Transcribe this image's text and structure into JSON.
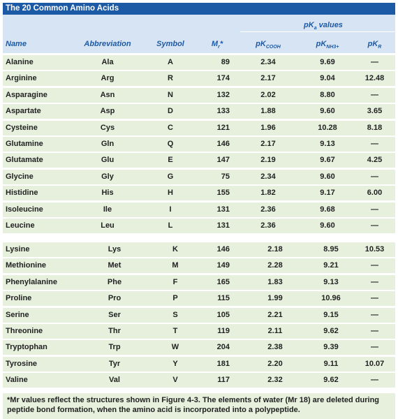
{
  "title": "The 20 Common Amino Acids",
  "header": {
    "pk_group": "pKa values",
    "columns": [
      "Name",
      "Abbreviation",
      "Symbol",
      "Mr*",
      "pKCOOH",
      "pKNH3+",
      "pKR"
    ]
  },
  "rows": [
    {
      "name": "Alanine",
      "abbr": "Ala",
      "symbol": "A",
      "mr": "89",
      "pk_cooh": "2.34",
      "pk_nh3": "9.69",
      "pk_r": "—"
    },
    {
      "name": "Arginine",
      "abbr": "Arg",
      "symbol": "R",
      "mr": "174",
      "pk_cooh": "2.17",
      "pk_nh3": "9.04",
      "pk_r": "12.48"
    },
    {
      "name": "Asparagine",
      "abbr": "Asn",
      "symbol": "N",
      "mr": "132",
      "pk_cooh": "2.02",
      "pk_nh3": "8.80",
      "pk_r": "—"
    },
    {
      "name": "Aspartate",
      "abbr": "Asp",
      "symbol": "D",
      "mr": "133",
      "pk_cooh": "1.88",
      "pk_nh3": "9.60",
      "pk_r": "3.65"
    },
    {
      "name": "Cysteine",
      "abbr": "Cys",
      "symbol": "C",
      "mr": "121",
      "pk_cooh": "1.96",
      "pk_nh3": "10.28",
      "pk_r": "8.18"
    },
    {
      "name": "Glutamine",
      "abbr": "Gln",
      "symbol": "Q",
      "mr": "146",
      "pk_cooh": "2.17",
      "pk_nh3": "9.13",
      "pk_r": "—"
    },
    {
      "name": "Glutamate",
      "abbr": "Glu",
      "symbol": "E",
      "mr": "147",
      "pk_cooh": "2.19",
      "pk_nh3": "9.67",
      "pk_r": "4.25"
    },
    {
      "name": "Glycine",
      "abbr": "Gly",
      "symbol": "G",
      "mr": "75",
      "pk_cooh": "2.34",
      "pk_nh3": "9.60",
      "pk_r": "—"
    },
    {
      "name": "Histidine",
      "abbr": "His",
      "symbol": "H",
      "mr": "155",
      "pk_cooh": "1.82",
      "pk_nh3": "9.17",
      "pk_r": "6.00"
    },
    {
      "name": "Isoleucine",
      "abbr": "Ile",
      "symbol": "I",
      "mr": "131",
      "pk_cooh": "2.36",
      "pk_nh3": "9.68",
      "pk_r": "—"
    },
    {
      "name": "Leucine",
      "abbr": "Leu",
      "symbol": "L",
      "mr": "131",
      "pk_cooh": "2.36",
      "pk_nh3": "9.60",
      "pk_r": "—"
    },
    {
      "name": "Lysine",
      "abbr": "Lys",
      "symbol": "K",
      "mr": "146",
      "pk_cooh": "2.18",
      "pk_nh3": "8.95",
      "pk_r": "10.53"
    },
    {
      "name": "Methionine",
      "abbr": "Met",
      "symbol": "M",
      "mr": "149",
      "pk_cooh": "2.28",
      "pk_nh3": "9.21",
      "pk_r": "—"
    },
    {
      "name": "Phenylalanine",
      "abbr": "Phe",
      "symbol": "F",
      "mr": "165",
      "pk_cooh": "1.83",
      "pk_nh3": "9.13",
      "pk_r": "—"
    },
    {
      "name": "Proline",
      "abbr": "Pro",
      "symbol": "P",
      "mr": "115",
      "pk_cooh": "1.99",
      "pk_nh3": "10.96",
      "pk_r": "—"
    },
    {
      "name": "Serine",
      "abbr": "Ser",
      "symbol": "S",
      "mr": "105",
      "pk_cooh": "2.21",
      "pk_nh3": "9.15",
      "pk_r": "—"
    },
    {
      "name": "Threonine",
      "abbr": "Thr",
      "symbol": "T",
      "mr": "119",
      "pk_cooh": "2.11",
      "pk_nh3": "9.62",
      "pk_r": "—"
    },
    {
      "name": "Tryptophan",
      "abbr": "Trp",
      "symbol": "W",
      "mr": "204",
      "pk_cooh": "2.38",
      "pk_nh3": "9.39",
      "pk_r": "—"
    },
    {
      "name": "Tyrosine",
      "abbr": "Tyr",
      "symbol": "Y",
      "mr": "181",
      "pk_cooh": "2.20",
      "pk_nh3": "9.11",
      "pk_r": "10.07"
    },
    {
      "name": "Valine",
      "abbr": "Val",
      "symbol": "V",
      "mr": "117",
      "pk_cooh": "2.32",
      "pk_nh3": "9.62",
      "pk_r": "—"
    }
  ],
  "footnote": "*Mr values reflect the structures shown in Figure 4-3. The elements of water (Mr 18) are deleted during peptide bond formation, when the amino acid is incorporated into a polypeptide.",
  "colors": {
    "title_bg": "#1c5aa6",
    "header_bg": "#d7e4f3",
    "row_bg": "#e6f0dd"
  }
}
